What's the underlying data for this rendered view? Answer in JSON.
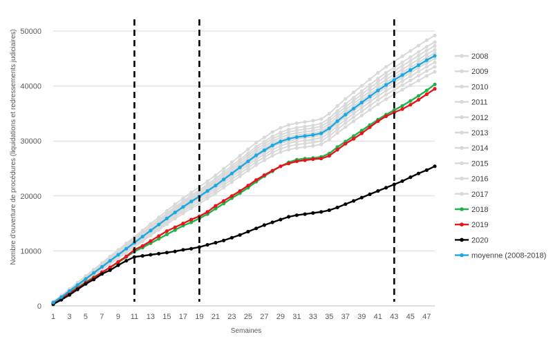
{
  "chart_data": {
    "type": "line",
    "xlabel": "Semaines",
    "ylabel": "Nombre d'ouverture de procédures (liquidations et redressements judiciaires)",
    "x_range": [
      1,
      48
    ],
    "x_ticks": [
      1,
      3,
      5,
      7,
      9,
      11,
      13,
      15,
      17,
      19,
      21,
      23,
      25,
      27,
      29,
      31,
      33,
      35,
      37,
      39,
      41,
      43,
      45,
      47
    ],
    "ylim": [
      0,
      50000
    ],
    "y_ticks": [
      0,
      10000,
      20000,
      30000,
      40000,
      50000
    ],
    "grid": "horizontal",
    "legend_position": "right",
    "vertical_markers": [
      11,
      19,
      43
    ],
    "colors": {
      "historic": "#d9d9d9",
      "2018": "#22b04b",
      "2019": "#e8141c",
      "2020": "#000000",
      "moyenne": "#1ba8e0",
      "grid": "#d9d9d9",
      "axis": "#bfbfbf"
    },
    "series": [
      {
        "name": "2008",
        "key": "historic",
        "start": 800,
        "end_week": 48,
        "end": 49200
      },
      {
        "name": "2009",
        "key": "historic",
        "start": 750,
        "end_week": 48,
        "end": 48000
      },
      {
        "name": "2010",
        "key": "historic",
        "start": 700,
        "end_week": 48,
        "end": 47300
      },
      {
        "name": "2011",
        "key": "historic",
        "start": 700,
        "end_week": 48,
        "end": 46600
      },
      {
        "name": "2012",
        "key": "historic",
        "start": 650,
        "end_week": 48,
        "end": 46000
      },
      {
        "name": "2013",
        "key": "historic",
        "start": 650,
        "end_week": 48,
        "end": 45500
      },
      {
        "name": "2014",
        "key": "historic",
        "start": 600,
        "end_week": 48,
        "end": 45000
      },
      {
        "name": "2015",
        "key": "historic",
        "start": 600,
        "end_week": 48,
        "end": 44300
      },
      {
        "name": "2016",
        "key": "historic",
        "start": 550,
        "end_week": 48,
        "end": 43500
      },
      {
        "name": "2017",
        "key": "historic",
        "start": 500,
        "end_week": 48,
        "end": 42600
      },
      {
        "name": "2018",
        "key": "2018",
        "values": [
          500,
          1400,
          2400,
          3300,
          4300,
          5200,
          6100,
          7000,
          7900,
          8900,
          9900,
          10600,
          11400,
          12200,
          13000,
          13800,
          14600,
          15200,
          15900,
          16700,
          17700,
          18600,
          19600,
          20500,
          21500,
          22600,
          23600,
          24500,
          25400,
          26100,
          26600,
          26800,
          26900,
          27100,
          27700,
          28900,
          29900,
          30900,
          31900,
          32900,
          33900,
          34800,
          35600,
          36400,
          37300,
          38200,
          39200,
          40300
        ]
      },
      {
        "name": "2019",
        "key": "2019",
        "values": [
          400,
          1300,
          2300,
          3200,
          4200,
          5100,
          6100,
          7000,
          8000,
          9000,
          10200,
          10900,
          11800,
          12700,
          13600,
          14300,
          15000,
          15700,
          16300,
          17100,
          18200,
          19100,
          20000,
          20900,
          21900,
          22900,
          23800,
          24600,
          25400,
          25900,
          26300,
          26500,
          26700,
          26800,
          27300,
          28400,
          29500,
          30400,
          31400,
          32500,
          33600,
          34500,
          35200,
          35800,
          36600,
          37500,
          38500,
          39500
        ]
      },
      {
        "name": "2020",
        "key": "2020",
        "values": [
          300,
          1100,
          2000,
          3000,
          4000,
          4800,
          5800,
          6500,
          7400,
          8200,
          8900,
          9100,
          9300,
          9500,
          9700,
          9900,
          10200,
          10400,
          10700,
          11100,
          11500,
          11900,
          12400,
          12900,
          13500,
          14100,
          14700,
          15200,
          15700,
          16200,
          16500,
          16700,
          16900,
          17100,
          17400,
          17900,
          18500,
          19100,
          19700,
          20300,
          20900,
          21500,
          22100,
          22700,
          23400,
          24100,
          24700,
          25400
        ]
      },
      {
        "name": "moyenne (2008-2018)",
        "key": "moyenne",
        "values": [
          600,
          1600,
          2700,
          3800,
          4900,
          6000,
          7100,
          8200,
          9300,
          10400,
          11500,
          12600,
          13700,
          14800,
          15900,
          17000,
          18000,
          19000,
          19900,
          20900,
          21900,
          23000,
          24100,
          25200,
          26300,
          27400,
          28300,
          29200,
          29900,
          30400,
          30700,
          30900,
          31100,
          31400,
          32300,
          33600,
          34800,
          35900,
          37000,
          38100,
          39200,
          40200,
          41100,
          42000,
          42900,
          43800,
          44700,
          45500
        ]
      }
    ]
  }
}
